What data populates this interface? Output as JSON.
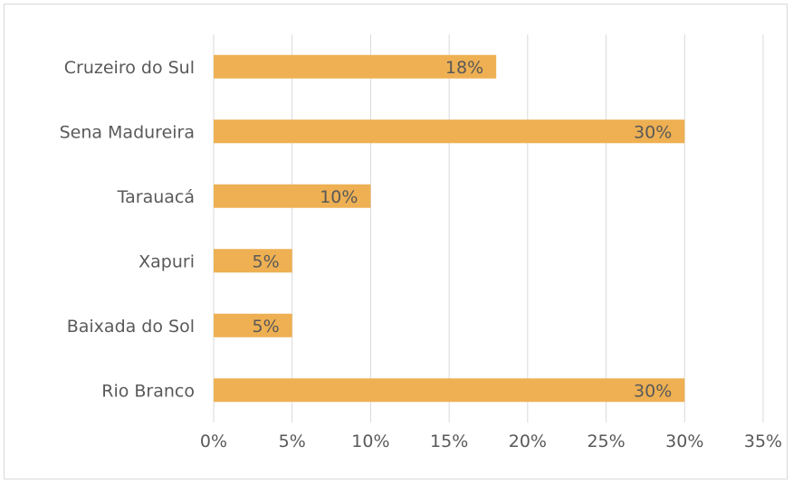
{
  "chart_data": {
    "type": "bar",
    "orientation": "horizontal",
    "title": "",
    "xlabel": "",
    "ylabel": "",
    "categories": [
      "Cruzeiro do Sul",
      "Sena Madureira",
      "Tarauacá",
      "Xapuri",
      "Baixada do Sol",
      "Rio Branco"
    ],
    "values": [
      18,
      30,
      10,
      5,
      5,
      30
    ],
    "data_labels": [
      "18%",
      "30%",
      "10%",
      "5%",
      "5%",
      "30%"
    ],
    "xlim": [
      0,
      35
    ],
    "x_ticks": [
      0,
      5,
      10,
      15,
      20,
      25,
      30,
      35
    ],
    "x_tick_labels": [
      "0%",
      "5%",
      "10%",
      "15%",
      "20%",
      "25%",
      "30%",
      "35%"
    ],
    "grid": "vertical",
    "legend": "none",
    "colors": {
      "bar": "#EEB052",
      "grid": "#d9d9d9",
      "text": "#595959",
      "border": "#d9d9d9"
    }
  }
}
